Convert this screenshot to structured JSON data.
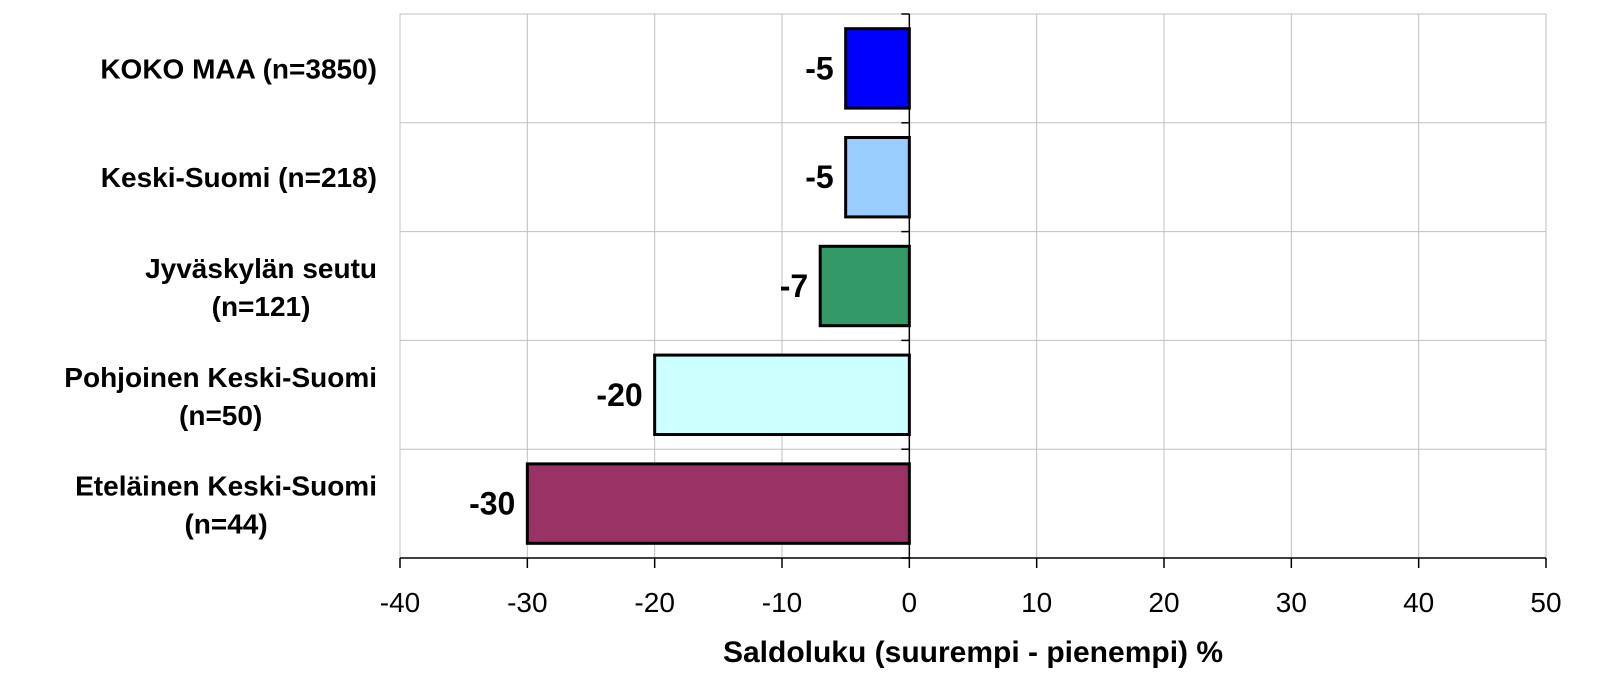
{
  "chart_data": {
    "type": "bar",
    "orientation": "horizontal",
    "categories": [
      [
        "KOKO MAA (n=3850)"
      ],
      [
        "Keski-Suomi   (n=218)"
      ],
      [
        "Jyväskylän seutu",
        "(n=121)"
      ],
      [
        "Pohjoinen Keski-Suomi",
        "(n=50)"
      ],
      [
        "Eteläinen Keski-Suomi",
        "(n=44)"
      ]
    ],
    "values": [
      -5,
      -5,
      -7,
      -20,
      -30
    ],
    "data_labels": [
      "-5",
      "-5",
      "-7",
      "-20",
      "-30"
    ],
    "bar_colors": [
      "#0000FF",
      "#99CCFF",
      "#339966",
      "#CCFFFF",
      "#993366"
    ],
    "xlim": [
      -40,
      50
    ],
    "xticks": [
      -40,
      -30,
      -20,
      -10,
      0,
      10,
      20,
      30,
      40,
      50
    ],
    "xlabel": "Saldoluku (suurempi - pienempi) %",
    "grid": true,
    "legend": "none"
  }
}
